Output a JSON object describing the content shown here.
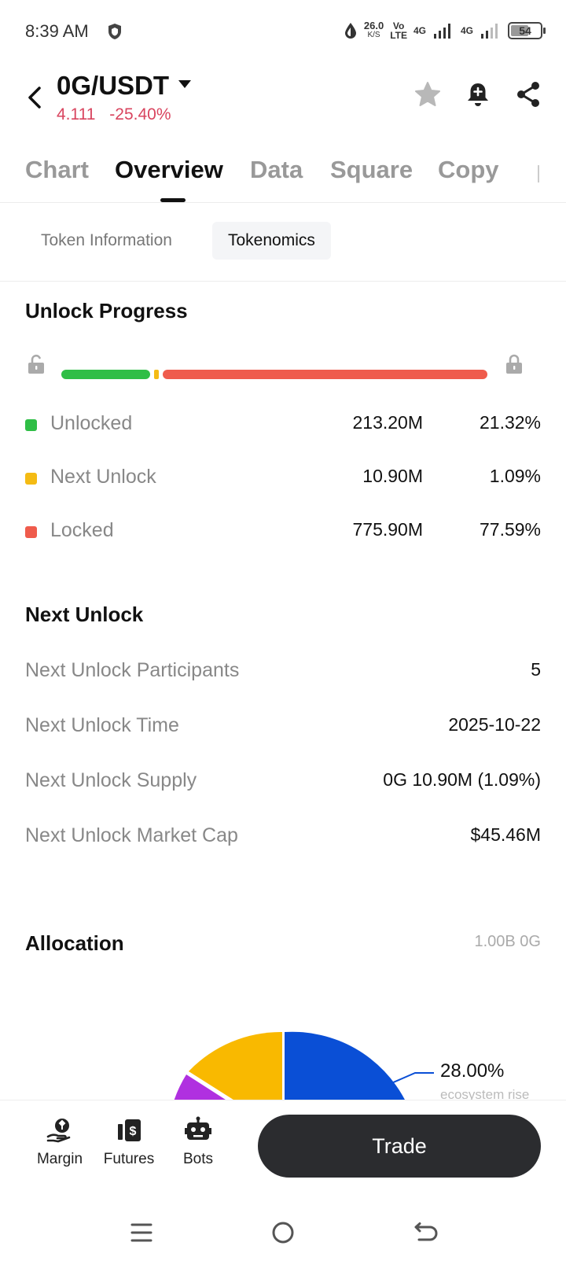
{
  "status_bar": {
    "time": "8:39 AM",
    "speed_value": "26.0",
    "speed_unit": "K/S",
    "volte_top": "Vo",
    "volte_bottom": "LTE",
    "net1": "4G",
    "net2": "4G",
    "battery": "54"
  },
  "header": {
    "pair": "0G/USDT",
    "price": "4.111",
    "change": "-25.40%",
    "change_color": "#d9455f"
  },
  "tabs": [
    "Chart",
    "Overview",
    "Data",
    "Square",
    "Copy"
  ],
  "active_tab": "Overview",
  "subtabs": {
    "token_info": "Token Information",
    "tokenomics": "Tokenomics"
  },
  "unlock_progress": {
    "title": "Unlock Progress",
    "unlocked_fraction": 0.2132,
    "next_fraction": 0.0109,
    "locked_fraction": 0.7759,
    "rows": [
      {
        "label": "Unlocked",
        "amount": "213.20M",
        "percent": "21.32%",
        "color": "#2fbe46"
      },
      {
        "label": "Next Unlock",
        "amount": "10.90M",
        "percent": "1.09%",
        "color": "#f4bb14"
      },
      {
        "label": "Locked",
        "amount": "775.90M",
        "percent": "77.59%",
        "color": "#ef5b4c"
      }
    ]
  },
  "next_unlock": {
    "title": "Next Unlock",
    "rows": [
      {
        "label": "Next Unlock Participants",
        "value": "5"
      },
      {
        "label": "Next Unlock Time",
        "value": "2025-10-22"
      },
      {
        "label": "Next Unlock Supply",
        "value": "0G 10.90M (1.09%)"
      },
      {
        "label": "Next Unlock Market Cap",
        "value": "$45.46M"
      }
    ]
  },
  "allocation": {
    "title": "Allocation",
    "total": "1.00B 0G",
    "visible_label_percent": "28.00%",
    "visible_label_name": "ecosystem rise",
    "colors": [
      "#0a4fd6",
      "#f9b900",
      "#b030e0"
    ]
  },
  "bottom_nav": {
    "margin": "Margin",
    "futures": "Futures",
    "bots": "Bots",
    "trade": "Trade"
  }
}
